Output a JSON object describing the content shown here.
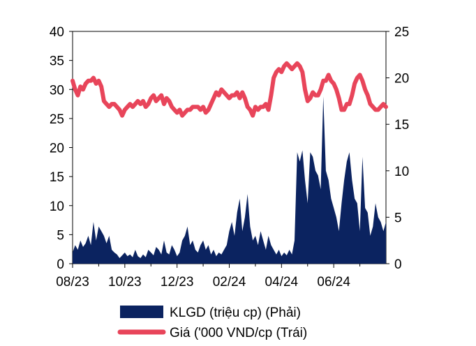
{
  "chart_data": {
    "type": "area+line",
    "title": "",
    "x_tick_labels": [
      "08/23",
      "10/23",
      "12/23",
      "02/24",
      "04/24",
      "06/24"
    ],
    "left_axis": {
      "ylim": [
        0,
        40
      ],
      "ticks": [
        "0",
        "5",
        "10",
        "15",
        "20",
        "25",
        "30",
        "35",
        "40"
      ]
    },
    "right_axis": {
      "ylim": [
        0,
        25
      ],
      "ticks": [
        "0",
        "5",
        "10",
        "15",
        "20",
        "25"
      ]
    },
    "x_range_months": [
      0,
      12
    ],
    "grid": false,
    "legend_position": "bottom",
    "series": [
      {
        "name": "KLGD (triệu cp) (Phải)",
        "type": "area",
        "axis": "right",
        "color": "#0b2360",
        "x": [
          0.0,
          0.1,
          0.2,
          0.3,
          0.4,
          0.5,
          0.6,
          0.7,
          0.8,
          0.9,
          1.0,
          1.1,
          1.2,
          1.3,
          1.4,
          1.5,
          1.6,
          1.7,
          1.8,
          1.9,
          2.0,
          2.1,
          2.2,
          2.3,
          2.4,
          2.5,
          2.6,
          2.7,
          2.8,
          2.9,
          3.0,
          3.1,
          3.2,
          3.3,
          3.4,
          3.5,
          3.6,
          3.7,
          3.8,
          3.9,
          4.0,
          4.1,
          4.2,
          4.3,
          4.4,
          4.5,
          4.6,
          4.7,
          4.8,
          4.9,
          5.0,
          5.1,
          5.2,
          5.3,
          5.4,
          5.5,
          5.6,
          5.7,
          5.8,
          5.9,
          6.0,
          6.1,
          6.2,
          6.3,
          6.4,
          6.5,
          6.6,
          6.7,
          6.8,
          6.9,
          7.0,
          7.1,
          7.2,
          7.3,
          7.4,
          7.5,
          7.6,
          7.7,
          7.8,
          7.9,
          8.0,
          8.1,
          8.2,
          8.3,
          8.4,
          8.5,
          8.6,
          8.7,
          8.8,
          8.9,
          9.0,
          9.1,
          9.2,
          9.3,
          9.4,
          9.5,
          9.6,
          9.7,
          9.8,
          9.9,
          10.0,
          10.1,
          10.2,
          10.3,
          10.4,
          10.5,
          10.6,
          10.7,
          10.8,
          10.9,
          11.0,
          11.1,
          11.2,
          11.3,
          11.4,
          11.5,
          11.6,
          11.7,
          11.8,
          11.9,
          12.0
        ],
        "values": [
          1.2,
          2.0,
          1.5,
          2.5,
          1.8,
          2.2,
          3.0,
          2.0,
          4.5,
          2.5,
          4.0,
          3.5,
          3.0,
          2.2,
          3.0,
          1.5,
          1.2,
          1.0,
          0.6,
          0.9,
          1.2,
          0.8,
          1.0,
          0.7,
          1.5,
          0.8,
          0.6,
          1.0,
          0.7,
          1.5,
          1.2,
          0.9,
          1.8,
          1.5,
          1.0,
          2.5,
          1.2,
          1.0,
          2.0,
          1.5,
          0.8,
          1.2,
          2.5,
          3.0,
          4.0,
          2.0,
          2.5,
          1.5,
          1.2,
          2.0,
          2.5,
          1.5,
          2.0,
          1.0,
          1.5,
          0.8,
          1.2,
          1.0,
          1.5,
          2.0,
          3.5,
          4.5,
          3.0,
          5.5,
          7.0,
          3.5,
          5.0,
          7.5,
          4.0,
          2.5,
          3.0,
          2.0,
          3.5,
          2.5,
          1.5,
          3.0,
          2.0,
          1.5,
          1.0,
          1.5,
          0.8,
          1.2,
          0.9,
          1.5,
          1.0,
          2.5,
          12.0,
          11.0,
          12.2,
          9.0,
          6.5,
          12.0,
          11.5,
          10.0,
          9.5,
          8.0,
          18.0,
          10.0,
          9.0,
          7.0,
          6.0,
          5.0,
          3.5,
          6.5,
          9.0,
          11.0,
          12.0,
          9.0,
          7.0,
          6.5,
          3.5,
          11.5,
          6.0,
          5.5,
          3.0,
          4.0,
          6.5,
          5.0,
          4.5,
          3.5,
          4.5
        ]
      },
      {
        "name": "Giá ('000 VND/cp (Trái)",
        "type": "line",
        "axis": "left",
        "color": "#e8455a",
        "x": [
          0.0,
          0.1,
          0.2,
          0.3,
          0.4,
          0.5,
          0.6,
          0.7,
          0.8,
          0.9,
          1.0,
          1.1,
          1.2,
          1.3,
          1.4,
          1.5,
          1.6,
          1.7,
          1.8,
          1.9,
          2.0,
          2.1,
          2.2,
          2.3,
          2.4,
          2.5,
          2.6,
          2.7,
          2.8,
          2.9,
          3.0,
          3.1,
          3.2,
          3.3,
          3.4,
          3.5,
          3.6,
          3.7,
          3.8,
          3.9,
          4.0,
          4.1,
          4.2,
          4.3,
          4.4,
          4.5,
          4.6,
          4.7,
          4.8,
          4.9,
          5.0,
          5.1,
          5.2,
          5.3,
          5.4,
          5.5,
          5.6,
          5.7,
          5.8,
          5.9,
          6.0,
          6.1,
          6.2,
          6.3,
          6.4,
          6.5,
          6.6,
          6.7,
          6.8,
          6.9,
          7.0,
          7.1,
          7.2,
          7.3,
          7.4,
          7.5,
          7.6,
          7.7,
          7.8,
          7.9,
          8.0,
          8.1,
          8.2,
          8.3,
          8.4,
          8.5,
          8.6,
          8.7,
          8.8,
          8.9,
          9.0,
          9.1,
          9.2,
          9.3,
          9.4,
          9.5,
          9.6,
          9.7,
          9.8,
          9.9,
          10.0,
          10.1,
          10.2,
          10.3,
          10.4,
          10.5,
          10.6,
          10.7,
          10.8,
          10.9,
          11.0,
          11.1,
          11.2,
          11.3,
          11.4,
          11.5,
          11.6,
          11.7,
          11.8,
          11.9,
          12.0
        ],
        "values": [
          31.5,
          30.0,
          29.0,
          30.5,
          30.0,
          31.0,
          31.5,
          31.5,
          32.0,
          31.0,
          31.5,
          30.5,
          28.0,
          27.5,
          27.0,
          27.5,
          27.5,
          27.0,
          26.5,
          25.5,
          26.5,
          27.0,
          27.5,
          27.0,
          27.5,
          28.0,
          27.5,
          28.0,
          27.0,
          27.5,
          28.5,
          29.0,
          28.0,
          28.5,
          29.0,
          27.5,
          28.5,
          28.0,
          27.0,
          26.5,
          26.0,
          26.5,
          25.5,
          26.0,
          26.5,
          26.5,
          27.0,
          27.0,
          27.0,
          26.5,
          27.0,
          26.0,
          26.5,
          27.5,
          28.5,
          29.5,
          29.0,
          30.0,
          29.5,
          29.0,
          28.5,
          29.0,
          29.0,
          29.5,
          28.5,
          29.5,
          28.5,
          27.0,
          26.5,
          25.5,
          27.0,
          26.5,
          27.0,
          27.0,
          27.5,
          26.5,
          29.0,
          32.0,
          33.0,
          33.5,
          33.0,
          34.0,
          34.5,
          34.0,
          33.5,
          34.0,
          34.5,
          34.0,
          33.0,
          30.0,
          28.0,
          28.5,
          29.5,
          29.0,
          29.0,
          30.0,
          31.5,
          31.5,
          32.5,
          31.5,
          31.0,
          30.0,
          28.5,
          26.5,
          26.5,
          27.5,
          27.5,
          29.0,
          31.0,
          32.0,
          32.5,
          31.5,
          30.0,
          29.0,
          27.5,
          27.0,
          26.5,
          26.5,
          27.0,
          27.5,
          27.0
        ]
      }
    ]
  }
}
